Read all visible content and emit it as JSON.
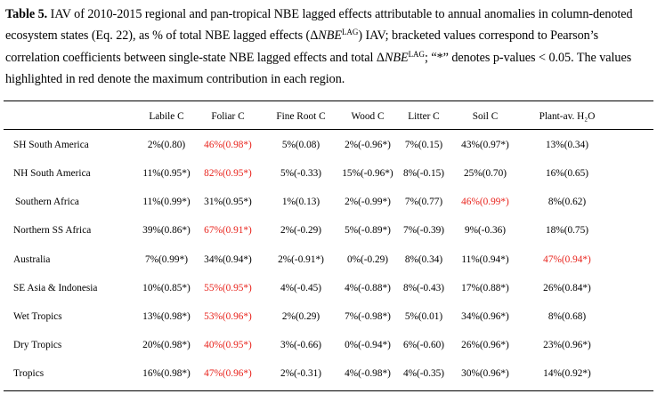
{
  "caption": {
    "label": "Table 5.",
    "text_part1": " IAV of 2010-2015 regional and pan-tropical NBE lagged effects attributable to annual anomalies in column-denoted ecosystem states (Eq. 22), as % of total NBE lagged effects (Δ",
    "italic1": "NBE",
    "sup1": "LAG",
    "text_part2": ") IAV; bracketed values correspond to Pearson’s correlation coefficients between single-state NBE lagged effects and total Δ",
    "italic2": "NBE",
    "sup2": "LAG",
    "text_part3": "; “*” denotes p-values < 0.05. The values highlighted in red denote the maximum contribution in each region."
  },
  "table": {
    "columns": [
      "Labile C",
      "Foliar C",
      "Fine Root C",
      "Wood C",
      "Litter C",
      "Soil C",
      "Plant-av. H₂O"
    ],
    "rows": [
      {
        "region": "SH South America",
        "cells": [
          "2%(0.80)",
          "46%(0.98*)",
          "5%(0.08)",
          "2%(-0.96*)",
          "7%(0.15)",
          "43%(0.97*)",
          "13%(0.34)"
        ],
        "max_index": 1
      },
      {
        "region": "NH South America",
        "cells": [
          "11%(0.95*)",
          "82%(0.95*)",
          "5%(-0.33)",
          "15%(-0.96*)",
          "8%(-0.15)",
          "25%(0.70)",
          "16%(0.65)"
        ],
        "max_index": 1
      },
      {
        "region": "Southern Africa",
        "cells": [
          "11%(0.99*)",
          "31%(0.95*)",
          "1%(0.13)",
          "2%(-0.99*)",
          "7%(0.77)",
          "46%(0.99*)",
          "8%(0.62)"
        ],
        "max_index": 5
      },
      {
        "region": "Northern SS Africa",
        "cells": [
          "39%(0.86*)",
          "67%(0.91*)",
          "2%(-0.29)",
          "5%(-0.89*)",
          "7%(-0.39)",
          "9%(-0.36)",
          "18%(0.75)"
        ],
        "max_index": 1
      },
      {
        "region": "Australia",
        "cells": [
          "7%(0.99*)",
          "34%(0.94*)",
          "2%(-0.91*)",
          "0%(-0.29)",
          "8%(0.34)",
          "11%(0.94*)",
          "47%(0.94*)"
        ],
        "max_index": 6
      },
      {
        "region": "SE Asia & Indonesia",
        "cells": [
          "10%(0.85*)",
          "55%(0.95*)",
          "4%(-0.45)",
          "4%(-0.88*)",
          "8%(-0.43)",
          "17%(0.88*)",
          "26%(0.84*)"
        ],
        "max_index": 1
      },
      {
        "region": "Wet Tropics",
        "cells": [
          "13%(0.98*)",
          "53%(0.96*)",
          "2%(0.29)",
          "7%(-0.98*)",
          "5%(0.01)",
          "34%(0.96*)",
          "8%(0.68)"
        ],
        "max_index": 1
      },
      {
        "region": "Dry Tropics",
        "cells": [
          "20%(0.98*)",
          "40%(0.95*)",
          "3%(-0.66)",
          "0%(-0.94*)",
          "6%(-0.60)",
          "26%(0.96*)",
          "23%(0.96*)"
        ],
        "max_index": 1
      },
      {
        "region": "Tropics",
        "cells": [
          "16%(0.98*)",
          "47%(0.96*)",
          "2%(-0.31)",
          "4%(-0.98*)",
          "4%(-0.35)",
          "30%(0.96*)",
          "14%(0.92*)"
        ],
        "max_index": 1
      }
    ]
  },
  "colors": {
    "highlight": "#e8231c",
    "text": "#000000"
  }
}
